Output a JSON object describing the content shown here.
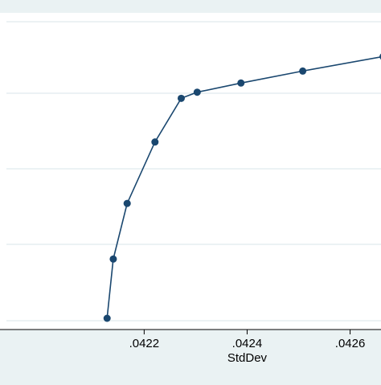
{
  "chart_data": {
    "type": "line",
    "title": "",
    "xlabel": "StdDev",
    "ylabel": "",
    "x_tick_labels": [
      ".0422",
      ".0424",
      ".0426"
    ],
    "x_tick_values": [
      0.0422,
      0.0424,
      0.0426
    ],
    "xlim": [
      0.04192,
      0.04266
    ],
    "ylim": [
      0,
      1
    ],
    "grid": true,
    "legend": "none",
    "series": [
      {
        "x": [
          0.042128,
          0.04214,
          0.042167,
          0.042221,
          0.042272,
          0.042303,
          0.042388,
          0.042508,
          0.042664
        ],
        "y": [
          0.0,
          0.213,
          0.413,
          0.634,
          0.791,
          0.813,
          0.846,
          0.889,
          0.941
        ]
      }
    ]
  },
  "colors": {
    "background": "#eaf2f3",
    "plot_background": "#ffffff",
    "gridline": "#e6eef0",
    "series": "#1a476f",
    "axis": "#000000"
  }
}
